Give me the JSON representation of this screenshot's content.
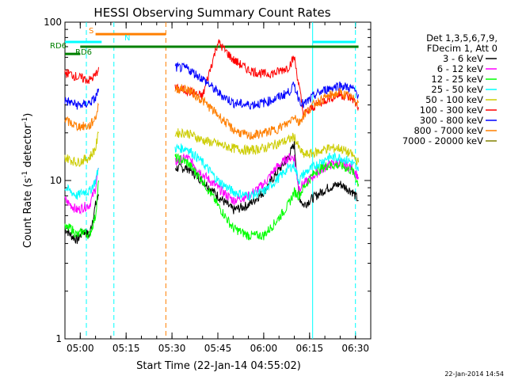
{
  "chart_data": {
    "type": "line",
    "title": "HESSI Observing Summary Count Rates",
    "xlabel": "Start Time (22-Jan-14 04:55:02)",
    "ylabel": "Count Rate (s⁻¹ detector⁻¹)",
    "ylabel_main": "Count Rate (s",
    "ylabel_mid": " detector",
    "ylabel_end": ")",
    "ylabel_sup": "-1",
    "yscale": "log",
    "xlim_min": [
      295,
      395
    ],
    "ylim": [
      1,
      100
    ],
    "x_ticks": [
      {
        "t": 300,
        "label": "05:00"
      },
      {
        "t": 315,
        "label": "05:15"
      },
      {
        "t": 330,
        "label": "05:30"
      },
      {
        "t": 345,
        "label": "05:45"
      },
      {
        "t": 360,
        "label": "06:00"
      },
      {
        "t": 375,
        "label": "06:15"
      },
      {
        "t": 390,
        "label": "06:30"
      }
    ],
    "y_ticks": [
      {
        "v": 1,
        "label": "1"
      },
      {
        "v": 10,
        "label": "10"
      },
      {
        "v": 100,
        "label": "100"
      }
    ],
    "legend": {
      "position": "top-right",
      "header": [
        "Det 1,3,5,6,7,9,",
        "FDecim 1, Att 0"
      ]
    },
    "footer_date": "22-Jan-2014 14:54",
    "series": [
      {
        "name": "3 - 6 keV",
        "color": "#000000",
        "x": [
          295,
          297,
          299,
          301,
          303,
          305,
          306,
          313,
          327,
          331,
          335,
          340,
          345,
          350,
          355,
          360,
          364,
          368,
          370,
          371.5,
          373,
          377,
          381,
          385,
          389,
          391
        ],
        "y": [
          5,
          4.5,
          4.2,
          4.8,
          4.5,
          7,
          8,
          null,
          null,
          12,
          12,
          10,
          8,
          6.5,
          7,
          8.5,
          11,
          14,
          17,
          8,
          7,
          8,
          9,
          9.5,
          8.5,
          7.5
        ]
      },
      {
        "name": "6 - 12 keV",
        "color": "#ff00ff",
        "x": [
          295,
          297,
          299,
          301,
          303,
          305,
          306,
          313,
          327,
          331,
          335,
          340,
          345,
          350,
          355,
          360,
          364,
          368,
          370,
          371.5,
          373,
          377,
          381,
          385,
          389,
          391
        ],
        "y": [
          7.5,
          7,
          6.5,
          6.8,
          7,
          9,
          12,
          null,
          null,
          13,
          14,
          11,
          9,
          7.5,
          8,
          9.5,
          12,
          14,
          14,
          9,
          9.5,
          11,
          12.5,
          13,
          12,
          10.5
        ]
      },
      {
        "name": "12 - 25 keV",
        "color": "#00ff00",
        "x": [
          295,
          297,
          299,
          301,
          303,
          305,
          306,
          313,
          327,
          331,
          335,
          340,
          345,
          350,
          355,
          360,
          364,
          368,
          370,
          371.5,
          373,
          377,
          381,
          385,
          389,
          391
        ],
        "y": [
          5,
          5,
          4.5,
          4.8,
          4.5,
          6,
          10,
          null,
          null,
          14,
          13,
          10,
          7,
          5,
          4.5,
          4.5,
          5.5,
          7,
          8.5,
          8,
          9,
          11.5,
          12.5,
          12.5,
          11.5,
          9.5
        ]
      },
      {
        "name": "25 - 50 keV",
        "color": "#00ffff",
        "x": [
          295,
          297,
          299,
          301,
          303,
          305,
          306,
          313,
          327,
          331,
          335,
          340,
          345,
          350,
          355,
          360,
          364,
          368,
          370,
          371.5,
          373,
          377,
          381,
          385,
          389,
          391
        ],
        "y": [
          9,
          8.5,
          8,
          8.5,
          8.5,
          10,
          12,
          null,
          null,
          16,
          16,
          13,
          10,
          8.5,
          8,
          8.5,
          10,
          12,
          12.5,
          10,
          11,
          12.5,
          14,
          14,
          13,
          11.5
        ]
      },
      {
        "name": "50 - 100 keV",
        "color": "#cccc00",
        "x": [
          295,
          297,
          299,
          301,
          303,
          305,
          306,
          313,
          327,
          331,
          335,
          340,
          345,
          350,
          355,
          360,
          364,
          368,
          370,
          371.5,
          373,
          377,
          381,
          385,
          389,
          391
        ],
        "y": [
          14,
          13.5,
          13,
          13.5,
          14,
          16,
          20,
          null,
          null,
          20,
          20,
          18,
          17,
          16,
          15.5,
          16,
          17,
          18,
          19,
          16,
          14.5,
          15,
          16,
          16,
          14.5,
          13
        ]
      },
      {
        "name": "100 - 300 keV",
        "color": "#ff0000",
        "x": [
          295,
          297,
          299,
          301,
          303,
          305,
          306,
          313,
          327,
          331,
          335,
          340,
          345,
          350,
          355,
          360,
          364,
          368,
          370,
          371.5,
          373,
          377,
          381,
          385,
          389,
          391
        ],
        "y": [
          48,
          47,
          45,
          44,
          43,
          46,
          52,
          null,
          null,
          38,
          37,
          34,
          75,
          58,
          50,
          47,
          48,
          52,
          60,
          40,
          26,
          30,
          33,
          35,
          33,
          29
        ]
      },
      {
        "name": "300 - 800 keV",
        "color": "#0000ff",
        "x": [
          295,
          297,
          299,
          301,
          303,
          305,
          306,
          313,
          327,
          331,
          335,
          340,
          345,
          350,
          355,
          360,
          364,
          368,
          370,
          371.5,
          373,
          377,
          381,
          385,
          389,
          391
        ],
        "y": [
          32,
          31,
          30,
          30,
          31,
          33,
          38,
          null,
          null,
          52,
          51,
          44,
          36,
          31,
          30,
          31,
          33,
          36,
          40,
          33,
          30,
          35,
          38,
          40,
          38,
          35
        ]
      },
      {
        "name": "800 - 7000 keV",
        "color": "#ff7f00",
        "x": [
          295,
          297,
          299,
          301,
          303,
          305,
          306,
          313,
          327,
          331,
          335,
          340,
          345,
          350,
          355,
          360,
          364,
          368,
          370,
          371.5,
          373,
          377,
          381,
          385,
          389,
          391
        ],
        "y": [
          24,
          23,
          22,
          22,
          22,
          25,
          30,
          null,
          null,
          38,
          38,
          32,
          26,
          21,
          19,
          20,
          21,
          23,
          26,
          23,
          26,
          31,
          34,
          36,
          33,
          31
        ]
      },
      {
        "name": "7000 - 20000 keV",
        "color": "#808000",
        "x": [
          300,
          301,
          301.5,
          302,
          302.5,
          303,
          303.5,
          304,
          304.5,
          305,
          305.5,
          306
        ],
        "y": [
          null,
          null,
          null,
          null,
          null,
          null,
          null,
          null,
          null,
          null,
          null,
          null
        ]
      }
    ],
    "annotations": {
      "s_label": "S",
      "n_label": "N",
      "rd6_left": "RD6",
      "rd6_right": "RD6",
      "bars": [
        {
          "id": "s-bar",
          "color": "#ff7f00",
          "level": 84,
          "x0": 305,
          "x1": 328
        },
        {
          "id": "n-bar-left",
          "color": "#00ffff",
          "level": 75,
          "x0": 295,
          "x1": 307
        },
        {
          "id": "n-bar-right",
          "color": "#00ffff",
          "level": 75,
          "x0": 376,
          "x1": 390
        },
        {
          "id": "rd6-top",
          "color": "#008000",
          "level": 70,
          "x0": 300,
          "x1": 391
        },
        {
          "id": "rd6-low",
          "color": "#008000",
          "level": 63,
          "x0": 295,
          "x1": 300
        }
      ],
      "vlines": [
        {
          "t": 302,
          "color": "#00ffff",
          "dashed": true
        },
        {
          "t": 311,
          "color": "#00ffff",
          "dashed": true
        },
        {
          "t": 328,
          "color": "#ff7f00",
          "dashed": true
        },
        {
          "t": 376,
          "color": "#00ffff",
          "dashed": false
        },
        {
          "t": 390,
          "color": "#00ffff",
          "dashed": true
        }
      ]
    }
  }
}
